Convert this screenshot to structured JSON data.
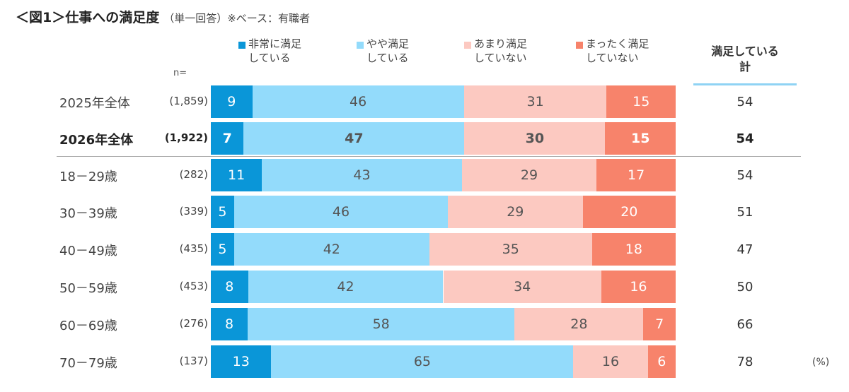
{
  "title": "＜図1＞仕事への満足度",
  "subtitle": "（単一回答）※ベース：有職者",
  "chart_data": {
    "type": "bar",
    "orientation": "horizontal-stacked-100",
    "n_label": "n=",
    "unit_label": "(%)",
    "total_header": [
      "満足している",
      "計"
    ],
    "series": [
      {
        "name": "非常に満足している",
        "legend": [
          "非常に満足",
          "している"
        ],
        "color": "#0a96d8"
      },
      {
        "name": "やや満足している",
        "legend": [
          "やや満足",
          "している"
        ],
        "color": "#93dbfb"
      },
      {
        "name": "あまり満足していない",
        "legend": [
          "あまり満足",
          "していない"
        ],
        "color": "#fcc9c1"
      },
      {
        "name": "まったく満足していない",
        "legend": [
          "まったく満足",
          "していない"
        ],
        "color": "#f7836b"
      }
    ],
    "rows": [
      {
        "label": "2025年全体",
        "n": "(1,859)",
        "values": [
          9,
          46,
          31,
          15
        ],
        "total": 54,
        "bold": false
      },
      {
        "label": "2026年全体",
        "n": "(1,922)",
        "values": [
          7,
          47,
          30,
          15
        ],
        "total": 54,
        "bold": true
      },
      {
        "label": "18－29歳",
        "n": "(282)",
        "values": [
          11,
          43,
          29,
          17
        ],
        "total": 54,
        "bold": false
      },
      {
        "label": "30－39歳",
        "n": "(339)",
        "values": [
          5,
          46,
          29,
          20
        ],
        "total": 51,
        "bold": false
      },
      {
        "label": "40－49歳",
        "n": "(435)",
        "values": [
          5,
          42,
          35,
          18
        ],
        "total": 47,
        "bold": false
      },
      {
        "label": "50－59歳",
        "n": "(453)",
        "values": [
          8,
          42,
          34,
          16
        ],
        "total": 50,
        "bold": false
      },
      {
        "label": "60－69歳",
        "n": "(276)",
        "values": [
          8,
          58,
          28,
          7
        ],
        "total": 66,
        "bold": false
      },
      {
        "label": "70－79歳",
        "n": "(137)",
        "values": [
          13,
          65,
          16,
          6
        ],
        "total": 78,
        "bold": false
      }
    ]
  }
}
